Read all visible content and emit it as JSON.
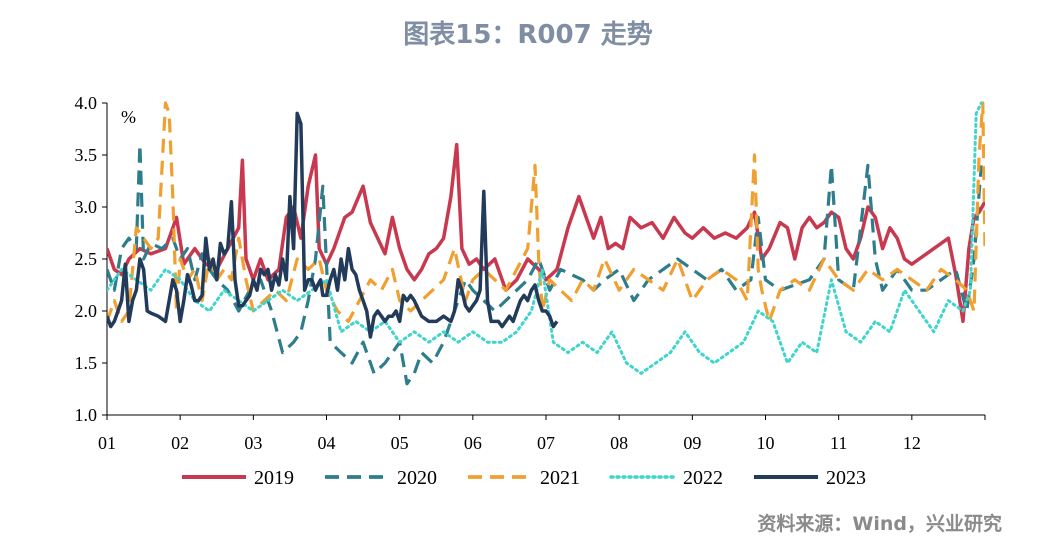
{
  "title": "图表15：R007 走势",
  "source": "资料来源：Wind，兴业研究",
  "chart_data": {
    "type": "line",
    "unit_label": "%",
    "ylim": [
      1.0,
      4.0
    ],
    "y_ticks": [
      "1.0",
      "1.5",
      "2.0",
      "2.5",
      "3.0",
      "3.5",
      "4.0"
    ],
    "x_ticks": [
      "01",
      "02",
      "03",
      "04",
      "05",
      "06",
      "07",
      "08",
      "09",
      "10",
      "11",
      "12"
    ],
    "xlim": [
      1,
      13
    ],
    "legend_position": "bottom",
    "series": [
      {
        "name": "2019",
        "color": "#c8384e",
        "style": "solid",
        "x": [
          1.0,
          1.1,
          1.2,
          1.3,
          1.45,
          1.6,
          1.8,
          1.95,
          2.05,
          2.2,
          2.35,
          2.5,
          2.65,
          2.8,
          2.85,
          2.9,
          3.0,
          3.1,
          3.2,
          3.35,
          3.45,
          3.55,
          3.65,
          3.75,
          3.85,
          3.9,
          4.0,
          4.1,
          4.25,
          4.35,
          4.5,
          4.6,
          4.7,
          4.8,
          4.9,
          5.0,
          5.1,
          5.2,
          5.3,
          5.4,
          5.5,
          5.6,
          5.7,
          5.78,
          5.85,
          5.95,
          6.05,
          6.15,
          6.3,
          6.45,
          6.6,
          6.75,
          6.9,
          7.0,
          7.15,
          7.3,
          7.45,
          7.55,
          7.65,
          7.75,
          7.85,
          7.95,
          8.05,
          8.15,
          8.3,
          8.45,
          8.6,
          8.75,
          8.9,
          9.0,
          9.15,
          9.3,
          9.45,
          9.6,
          9.75,
          9.85,
          9.95,
          10.05,
          10.2,
          10.3,
          10.4,
          10.5,
          10.6,
          10.7,
          10.8,
          10.9,
          11.0,
          11.1,
          11.2,
          11.3,
          11.4,
          11.5,
          11.6,
          11.7,
          11.8,
          11.9,
          12.0,
          12.1,
          12.2,
          12.3,
          12.4,
          12.5,
          12.6,
          12.7,
          12.78,
          12.85,
          12.92,
          13.0
        ],
        "y": [
          2.6,
          2.4,
          2.35,
          2.5,
          2.6,
          2.55,
          2.6,
          2.9,
          2.45,
          2.6,
          2.45,
          2.4,
          2.6,
          2.8,
          3.45,
          2.5,
          2.3,
          2.5,
          2.3,
          2.4,
          2.9,
          3.0,
          2.7,
          3.2,
          3.5,
          2.6,
          2.45,
          2.6,
          2.9,
          2.95,
          3.2,
          2.85,
          2.7,
          2.55,
          2.9,
          2.6,
          2.4,
          2.3,
          2.4,
          2.55,
          2.6,
          2.7,
          3.1,
          3.6,
          2.6,
          2.45,
          2.5,
          2.4,
          2.5,
          2.2,
          2.3,
          2.5,
          2.4,
          2.3,
          2.4,
          2.8,
          3.1,
          2.9,
          2.7,
          2.9,
          2.6,
          2.65,
          2.6,
          2.9,
          2.8,
          2.85,
          2.7,
          2.9,
          2.75,
          2.7,
          2.8,
          2.7,
          2.75,
          2.7,
          2.8,
          2.95,
          2.5,
          2.6,
          2.85,
          2.8,
          2.5,
          2.8,
          2.9,
          2.8,
          2.85,
          2.95,
          2.9,
          2.6,
          2.5,
          2.7,
          3.0,
          2.9,
          2.6,
          2.8,
          2.7,
          2.5,
          2.45,
          2.5,
          2.55,
          2.6,
          2.65,
          2.7,
          2.35,
          1.9,
          2.6,
          2.9,
          2.95,
          3.05
        ]
      },
      {
        "name": "2020",
        "color": "#2e7d8c",
        "style": "dashed",
        "x": [
          1.0,
          1.1,
          1.2,
          1.3,
          1.4,
          1.45,
          1.5,
          1.6,
          1.75,
          1.9,
          2.0,
          2.1,
          2.2,
          2.3,
          2.4,
          2.5,
          2.65,
          2.8,
          2.95,
          3.1,
          3.25,
          3.4,
          3.55,
          3.65,
          3.75,
          3.85,
          3.95,
          4.05,
          4.2,
          4.35,
          4.5,
          4.65,
          4.8,
          4.9,
          5.0,
          5.1,
          5.2,
          5.3,
          5.45,
          5.6,
          5.75,
          5.9,
          6.0,
          6.15,
          6.3,
          6.45,
          6.6,
          6.75,
          6.9,
          7.05,
          7.2,
          7.35,
          7.5,
          7.65,
          7.8,
          8.0,
          8.2,
          8.4,
          8.6,
          8.8,
          9.0,
          9.2,
          9.4,
          9.6,
          9.8,
          9.9,
          10.0,
          10.2,
          10.4,
          10.6,
          10.8,
          10.9,
          11.0,
          11.2,
          11.4,
          11.5,
          11.6,
          11.8,
          12.0,
          12.2,
          12.4,
          12.6,
          12.75,
          12.85,
          12.95
        ],
        "y": [
          2.4,
          2.2,
          2.6,
          2.7,
          2.6,
          3.6,
          2.5,
          2.65,
          2.6,
          2.7,
          2.5,
          2.6,
          2.3,
          2.55,
          2.4,
          2.3,
          2.2,
          2.0,
          2.2,
          2.3,
          2.0,
          1.6,
          1.7,
          1.8,
          2.1,
          2.5,
          3.2,
          1.7,
          1.6,
          1.5,
          1.7,
          1.4,
          1.5,
          1.6,
          1.7,
          1.3,
          1.4,
          1.6,
          1.5,
          1.7,
          2.0,
          2.3,
          2.2,
          2.1,
          2.0,
          2.1,
          2.2,
          2.3,
          2.5,
          2.2,
          2.4,
          2.35,
          2.3,
          2.2,
          2.3,
          2.4,
          2.1,
          2.3,
          2.4,
          2.5,
          2.4,
          2.3,
          2.4,
          2.2,
          2.3,
          2.9,
          2.3,
          2.2,
          2.25,
          2.3,
          2.5,
          3.4,
          2.3,
          2.2,
          3.4,
          2.5,
          2.2,
          2.4,
          2.2,
          2.2,
          2.3,
          2.4,
          2.0,
          2.5,
          3.4
        ]
      },
      {
        "name": "2021",
        "color": "#f0a030",
        "style": "dashed",
        "x": [
          1.0,
          1.1,
          1.2,
          1.3,
          1.4,
          1.5,
          1.6,
          1.7,
          1.8,
          1.85,
          1.9,
          1.95,
          2.0,
          2.1,
          2.2,
          2.3,
          2.4,
          2.5,
          2.6,
          2.7,
          2.8,
          2.9,
          3.0,
          3.15,
          3.3,
          3.45,
          3.6,
          3.75,
          3.9,
          4.0,
          4.15,
          4.3,
          4.45,
          4.6,
          4.75,
          4.9,
          5.0,
          5.15,
          5.3,
          5.45,
          5.6,
          5.75,
          5.9,
          6.0,
          6.15,
          6.3,
          6.45,
          6.6,
          6.75,
          6.85,
          6.9,
          6.95,
          7.05,
          7.2,
          7.35,
          7.5,
          7.65,
          7.8,
          8.0,
          8.2,
          8.4,
          8.6,
          8.8,
          9.0,
          9.2,
          9.4,
          9.6,
          9.75,
          9.85,
          9.9,
          9.95,
          10.05,
          10.2,
          10.4,
          10.6,
          10.8,
          11.0,
          11.2,
          11.4,
          11.6,
          11.8,
          12.0,
          12.2,
          12.4,
          12.6,
          12.75,
          12.85,
          12.92,
          12.97,
          13.0
        ],
        "y": [
          1.9,
          2.1,
          1.9,
          2.0,
          2.8,
          2.7,
          2.6,
          2.7,
          4.0,
          3.9,
          3.1,
          2.0,
          2.5,
          2.3,
          2.4,
          2.1,
          2.5,
          2.3,
          2.4,
          2.3,
          2.7,
          2.3,
          2.0,
          2.1,
          2.2,
          2.1,
          2.5,
          2.4,
          2.5,
          2.2,
          2.0,
          1.9,
          2.1,
          2.3,
          2.2,
          2.4,
          2.1,
          2.0,
          2.1,
          2.2,
          2.3,
          2.6,
          2.1,
          2.3,
          2.4,
          2.3,
          2.2,
          2.4,
          2.6,
          3.4,
          2.5,
          2.0,
          2.3,
          2.2,
          2.1,
          2.3,
          2.2,
          2.5,
          2.2,
          2.4,
          2.3,
          2.2,
          2.5,
          2.1,
          2.3,
          2.4,
          2.3,
          2.1,
          3.5,
          2.4,
          2.2,
          1.9,
          2.2,
          2.3,
          2.2,
          2.5,
          2.3,
          2.2,
          2.4,
          2.3,
          2.4,
          2.3,
          2.2,
          2.4,
          2.3,
          2.2,
          2.0,
          3.5,
          4.0,
          2.6
        ]
      },
      {
        "name": "2022",
        "color": "#3fd4cc",
        "style": "dotted",
        "x": [
          1.0,
          1.2,
          1.4,
          1.6,
          1.8,
          2.0,
          2.2,
          2.4,
          2.6,
          2.8,
          3.0,
          3.2,
          3.4,
          3.6,
          3.8,
          4.0,
          4.2,
          4.4,
          4.6,
          4.8,
          5.0,
          5.2,
          5.4,
          5.6,
          5.8,
          6.0,
          6.2,
          6.4,
          6.6,
          6.8,
          6.95,
          7.1,
          7.3,
          7.5,
          7.7,
          7.9,
          8.1,
          8.3,
          8.5,
          8.7,
          8.9,
          9.1,
          9.3,
          9.5,
          9.7,
          9.9,
          10.1,
          10.3,
          10.5,
          10.7,
          10.9,
          11.1,
          11.3,
          11.5,
          11.7,
          11.9,
          12.1,
          12.3,
          12.5,
          12.7,
          12.8,
          12.88,
          12.95
        ],
        "y": [
          2.2,
          2.4,
          2.3,
          2.2,
          2.4,
          2.3,
          2.1,
          2.0,
          2.2,
          2.1,
          2.0,
          2.1,
          2.2,
          2.1,
          2.2,
          2.3,
          1.8,
          1.9,
          1.8,
          1.9,
          1.7,
          1.8,
          1.7,
          1.8,
          1.7,
          1.8,
          1.7,
          1.7,
          1.8,
          2.0,
          2.4,
          1.7,
          1.6,
          1.7,
          1.6,
          1.8,
          1.5,
          1.4,
          1.5,
          1.6,
          1.8,
          1.6,
          1.5,
          1.6,
          1.7,
          2.0,
          1.9,
          1.5,
          1.7,
          1.6,
          2.3,
          1.8,
          1.7,
          1.9,
          1.8,
          2.2,
          2.0,
          1.8,
          2.1,
          2.0,
          2.2,
          3.9,
          4.0
        ]
      },
      {
        "name": "2023",
        "color": "#233b5b",
        "style": "solid",
        "x": [
          1.0,
          1.05,
          1.1,
          1.15,
          1.2,
          1.25,
          1.3,
          1.35,
          1.4,
          1.45,
          1.5,
          1.55,
          1.6,
          1.7,
          1.8,
          1.9,
          1.95,
          2.0,
          2.05,
          2.1,
          2.15,
          2.2,
          2.25,
          2.3,
          2.35,
          2.4,
          2.45,
          2.5,
          2.55,
          2.6,
          2.65,
          2.7,
          2.75,
          2.8,
          2.85,
          2.9,
          2.95,
          3.0,
          3.05,
          3.1,
          3.15,
          3.2,
          3.25,
          3.3,
          3.35,
          3.4,
          3.45,
          3.5,
          3.55,
          3.6,
          3.65,
          3.7,
          3.75,
          3.8,
          3.85,
          3.88,
          3.92,
          3.95,
          4.0,
          4.05,
          4.1,
          4.15,
          4.2,
          4.25,
          4.3,
          4.35,
          4.4,
          4.45,
          4.5,
          4.55,
          4.6,
          4.65,
          4.7,
          4.75,
          4.8,
          4.85,
          4.9,
          4.95,
          5.0,
          5.05,
          5.1,
          5.15,
          5.2,
          5.3,
          5.4,
          5.5,
          5.6,
          5.7,
          5.75,
          5.8,
          5.85,
          5.9,
          5.95,
          6.0,
          6.05,
          6.1,
          6.15,
          6.2,
          6.25,
          6.3,
          6.35,
          6.4,
          6.45,
          6.5,
          6.55,
          6.6,
          6.65,
          6.7,
          6.75,
          6.8,
          6.85,
          6.9,
          6.95,
          7.0,
          7.05,
          7.1,
          7.15
        ],
        "y": [
          1.95,
          1.85,
          1.9,
          2.0,
          2.1,
          2.45,
          1.9,
          2.1,
          2.2,
          2.5,
          2.4,
          2.0,
          1.98,
          1.95,
          1.9,
          2.3,
          2.2,
          1.9,
          2.1,
          2.35,
          2.25,
          2.1,
          2.1,
          2.15,
          2.7,
          2.4,
          2.5,
          2.3,
          2.65,
          2.55,
          2.6,
          3.05,
          2.3,
          2.05,
          2.05,
          2.1,
          2.15,
          2.3,
          2.2,
          2.4,
          2.35,
          2.4,
          2.2,
          2.35,
          2.25,
          2.5,
          2.3,
          3.1,
          2.6,
          3.9,
          3.8,
          2.2,
          2.3,
          2.3,
          2.2,
          2.25,
          2.3,
          2.15,
          2.15,
          2.3,
          2.4,
          2.2,
          2.5,
          2.3,
          2.6,
          2.4,
          2.35,
          2.2,
          2.1,
          2.0,
          1.75,
          1.95,
          2.0,
          1.95,
          1.9,
          1.95,
          1.95,
          2.0,
          1.9,
          2.15,
          2.1,
          2.15,
          2.1,
          1.95,
          1.9,
          1.9,
          1.95,
          1.9,
          2.0,
          2.3,
          2.2,
          2.05,
          2.0,
          2.05,
          2.1,
          2.2,
          3.15,
          2.1,
          1.9,
          1.9,
          1.9,
          1.85,
          1.9,
          1.95,
          1.9,
          2.0,
          2.1,
          2.15,
          2.1,
          2.2,
          2.25,
          2.1,
          2.0,
          2.0,
          1.95,
          1.85,
          1.9
        ]
      }
    ]
  }
}
